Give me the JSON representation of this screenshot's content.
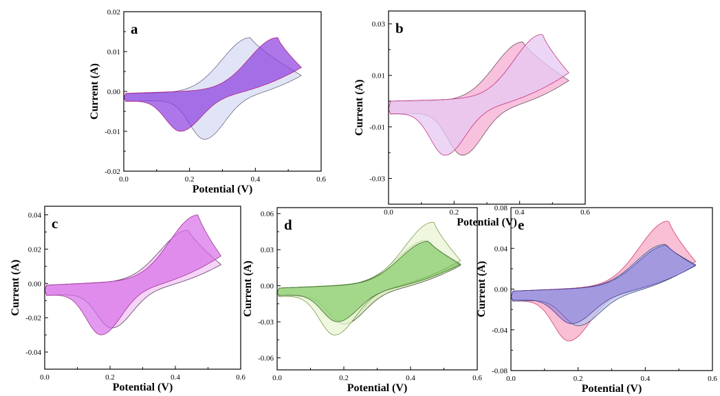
{
  "chart_data": [
    {
      "type": "area",
      "panel_label": "a",
      "xlabel": "Potential (V)",
      "ylabel": "Current (A)",
      "xlim": [
        0.0,
        0.6
      ],
      "ylim": [
        -0.02,
        0.02
      ],
      "x_ticks": [
        0.0,
        0.2,
        0.4,
        0.6
      ],
      "x_tick_labels": [
        "0.0",
        "0.2",
        "0.4",
        "0.6"
      ],
      "y_ticks": [
        -0.02,
        -0.01,
        0.0,
        0.01,
        0.02
      ],
      "y_tick_labels": [
        "-0.02",
        "-0.01",
        "0.00",
        "0.01",
        "0.02"
      ],
      "series": [
        {
          "color": "#dcdff5",
          "opacity": 0.85,
          "stroke": "#6a6a80",
          "x_min": 0.0,
          "x_max": 0.54,
          "y_start": -0.0015,
          "y_end": 0.004,
          "anodic_peak": [
            0.385,
            0.0135
          ],
          "cathodic_peak": [
            0.245,
            -0.012
          ],
          "anodic_baseline": [
            -0.0005,
            0.0
          ],
          "cathodic_baseline": [
            -0.0025,
            -0.0015
          ]
        },
        {
          "color": "#8a3de0",
          "opacity": 0.7,
          "stroke": "#b01f7c",
          "x_min": 0.0,
          "x_max": 0.54,
          "y_start": -0.0015,
          "y_end": 0.006,
          "anodic_peak": [
            0.468,
            0.0135
          ],
          "cathodic_peak": [
            0.172,
            -0.01
          ],
          "anodic_baseline": [
            -0.0005,
            0.001
          ],
          "cathodic_baseline": [
            -0.0025,
            -0.001
          ]
        }
      ]
    },
    {
      "type": "area",
      "panel_label": "b",
      "xlabel": "Potential (V)",
      "ylabel": "Current (A)",
      "xlim": [
        0.0,
        0.6
      ],
      "ylim": [
        -0.04,
        0.035
      ],
      "x_ticks": [
        0.0,
        0.2,
        0.4,
        0.6
      ],
      "x_tick_labels": [
        "0.0",
        "0.2",
        "0.4",
        "0.6"
      ],
      "y_ticks": [
        -0.03,
        -0.01,
        0.01,
        0.03
      ],
      "y_tick_labels": [
        "-0.03",
        "-0.01",
        "0.01",
        "0.03"
      ],
      "series": [
        {
          "color": "#f5a6cf",
          "opacity": 0.7,
          "stroke": "#6a5060",
          "x_min": 0.0,
          "x_max": 0.55,
          "y_start": -0.003,
          "y_end": 0.008,
          "anodic_peak": [
            0.41,
            0.023
          ],
          "cathodic_peak": [
            0.225,
            -0.021
          ],
          "anodic_baseline": [
            0.0,
            0.0
          ],
          "cathodic_baseline": [
            -0.005,
            -0.003
          ]
        },
        {
          "color": "#e7c8f1",
          "opacity": 0.75,
          "stroke": "#c42f80",
          "x_min": 0.0,
          "x_max": 0.55,
          "y_start": -0.003,
          "y_end": 0.011,
          "anodic_peak": [
            0.47,
            0.026
          ],
          "cathodic_peak": [
            0.172,
            -0.021
          ],
          "anodic_baseline": [
            0.0,
            0.002
          ],
          "cathodic_baseline": [
            -0.005,
            -0.002
          ]
        }
      ]
    },
    {
      "type": "area",
      "panel_label": "c",
      "xlabel": "Potential (V)",
      "ylabel": "Current (A)",
      "xlim": [
        0.0,
        0.6
      ],
      "ylim": [
        -0.05,
        0.045
      ],
      "x_ticks": [
        0.0,
        0.2,
        0.4,
        0.6
      ],
      "x_tick_labels": [
        "0.0",
        "0.2",
        "0.4",
        "0.6"
      ],
      "y_ticks": [
        -0.04,
        -0.02,
        0.0,
        0.02,
        0.04
      ],
      "y_tick_labels": [
        "-0.04",
        "-0.02",
        "0.00",
        "0.02",
        "0.04"
      ],
      "series": [
        {
          "color": "#f4c9f6",
          "opacity": 0.8,
          "stroke": "#5a4060",
          "x_min": 0.0,
          "x_max": 0.54,
          "y_start": -0.004,
          "y_end": 0.011,
          "anodic_peak": [
            0.44,
            0.031
          ],
          "cathodic_peak": [
            0.205,
            -0.026
          ],
          "anodic_baseline": [
            -0.001,
            0.003
          ],
          "cathodic_baseline": [
            -0.007,
            -0.003
          ]
        },
        {
          "color": "#d66ee8",
          "opacity": 0.7,
          "stroke": "#a03590",
          "x_min": 0.0,
          "x_max": 0.54,
          "y_start": -0.004,
          "y_end": 0.016,
          "anodic_peak": [
            0.47,
            0.04
          ],
          "cathodic_peak": [
            0.172,
            -0.03
          ],
          "anodic_baseline": [
            -0.001,
            0.004
          ],
          "cathodic_baseline": [
            -0.007,
            -0.002
          ]
        }
      ]
    },
    {
      "type": "area",
      "panel_label": "d",
      "xlabel": "Potential (V)",
      "ylabel": "Current (A)",
      "xlim": [
        0.0,
        0.6
      ],
      "ylim": [
        -0.07,
        0.065
      ],
      "x_ticks": [
        0.0,
        0.2,
        0.4,
        0.6
      ],
      "x_tick_labels": [
        "0.0",
        "0.2",
        "0.4",
        "0.6"
      ],
      "y_ticks": [
        -0.06,
        -0.03,
        0.0,
        0.03,
        0.06
      ],
      "y_tick_labels": [
        "-0.06",
        "-0.03",
        "0.00",
        "0.03",
        "0.06"
      ],
      "series": [
        {
          "color": "#cfe6b3",
          "opacity": 0.8,
          "stroke": "#404a30",
          "x_min": 0.0,
          "x_max": 0.55,
          "y_start": -0.006,
          "y_end": 0.017,
          "anodic_peak": [
            0.45,
            0.038
          ],
          "cathodic_peak": [
            0.2,
            -0.032
          ],
          "anodic_baseline": [
            -0.002,
            0.004
          ],
          "cathodic_baseline": [
            -0.009,
            -0.004
          ]
        },
        {
          "color": "#eaf6d4",
          "opacity": 0.75,
          "stroke": "#7a9a50",
          "x_min": 0.0,
          "x_max": 0.55,
          "y_start": -0.006,
          "y_end": 0.021,
          "anodic_peak": [
            0.47,
            0.053
          ],
          "cathodic_peak": [
            0.172,
            -0.041
          ],
          "anodic_baseline": [
            -0.002,
            0.005
          ],
          "cathodic_baseline": [
            -0.009,
            -0.003
          ]
        },
        {
          "color": "#6bbf4f",
          "opacity": 0.55,
          "stroke": "#3c6b2c",
          "x_min": 0.0,
          "x_max": 0.55,
          "y_start": -0.006,
          "y_end": 0.018,
          "anodic_peak": [
            0.455,
            0.037
          ],
          "cathodic_peak": [
            0.18,
            -0.03
          ],
          "anodic_baseline": [
            -0.002,
            0.004
          ],
          "cathodic_baseline": [
            -0.008,
            -0.003
          ]
        }
      ]
    },
    {
      "type": "area",
      "panel_label": "e",
      "xlabel": "Potential (V)",
      "ylabel": "Current (A)",
      "xlim": [
        0.0,
        0.6
      ],
      "ylim": [
        -0.08,
        0.08
      ],
      "x_ticks": [
        0.0,
        0.2,
        0.4,
        0.6
      ],
      "x_tick_labels": [
        "0.0",
        "0.2",
        "0.4",
        "0.6"
      ],
      "y_ticks": [
        -0.08,
        -0.04,
        0.0,
        0.04,
        0.08
      ],
      "y_tick_labels": [
        "-0.08",
        "-0.04",
        "0.00",
        "0.04",
        "0.08"
      ],
      "series": [
        {
          "color": "#f7a9c6",
          "opacity": 0.75,
          "stroke": "#d23b73",
          "x_min": 0.0,
          "x_max": 0.55,
          "y_start": -0.008,
          "y_end": 0.027,
          "anodic_peak": [
            0.47,
            0.067
          ],
          "cathodic_peak": [
            0.172,
            -0.051
          ],
          "anodic_baseline": [
            -0.002,
            0.006
          ],
          "cathodic_baseline": [
            -0.012,
            -0.004
          ]
        },
        {
          "color": "#b6c4f0",
          "opacity": 0.75,
          "stroke": "#404a70",
          "x_min": 0.0,
          "x_max": 0.55,
          "y_start": -0.008,
          "y_end": 0.024,
          "anodic_peak": [
            0.46,
            0.044
          ],
          "cathodic_peak": [
            0.2,
            -0.036
          ],
          "anodic_baseline": [
            -0.002,
            0.005
          ],
          "cathodic_baseline": [
            -0.012,
            -0.005
          ]
        },
        {
          "color": "#7d6fd6",
          "opacity": 0.5,
          "stroke": "#4a3f9a",
          "x_min": 0.0,
          "x_max": 0.55,
          "y_start": -0.008,
          "y_end": 0.023,
          "anodic_peak": [
            0.465,
            0.043
          ],
          "cathodic_peak": [
            0.18,
            -0.034
          ],
          "anodic_baseline": [
            -0.002,
            0.005
          ],
          "cathodic_baseline": [
            -0.011,
            -0.004
          ]
        }
      ]
    }
  ]
}
